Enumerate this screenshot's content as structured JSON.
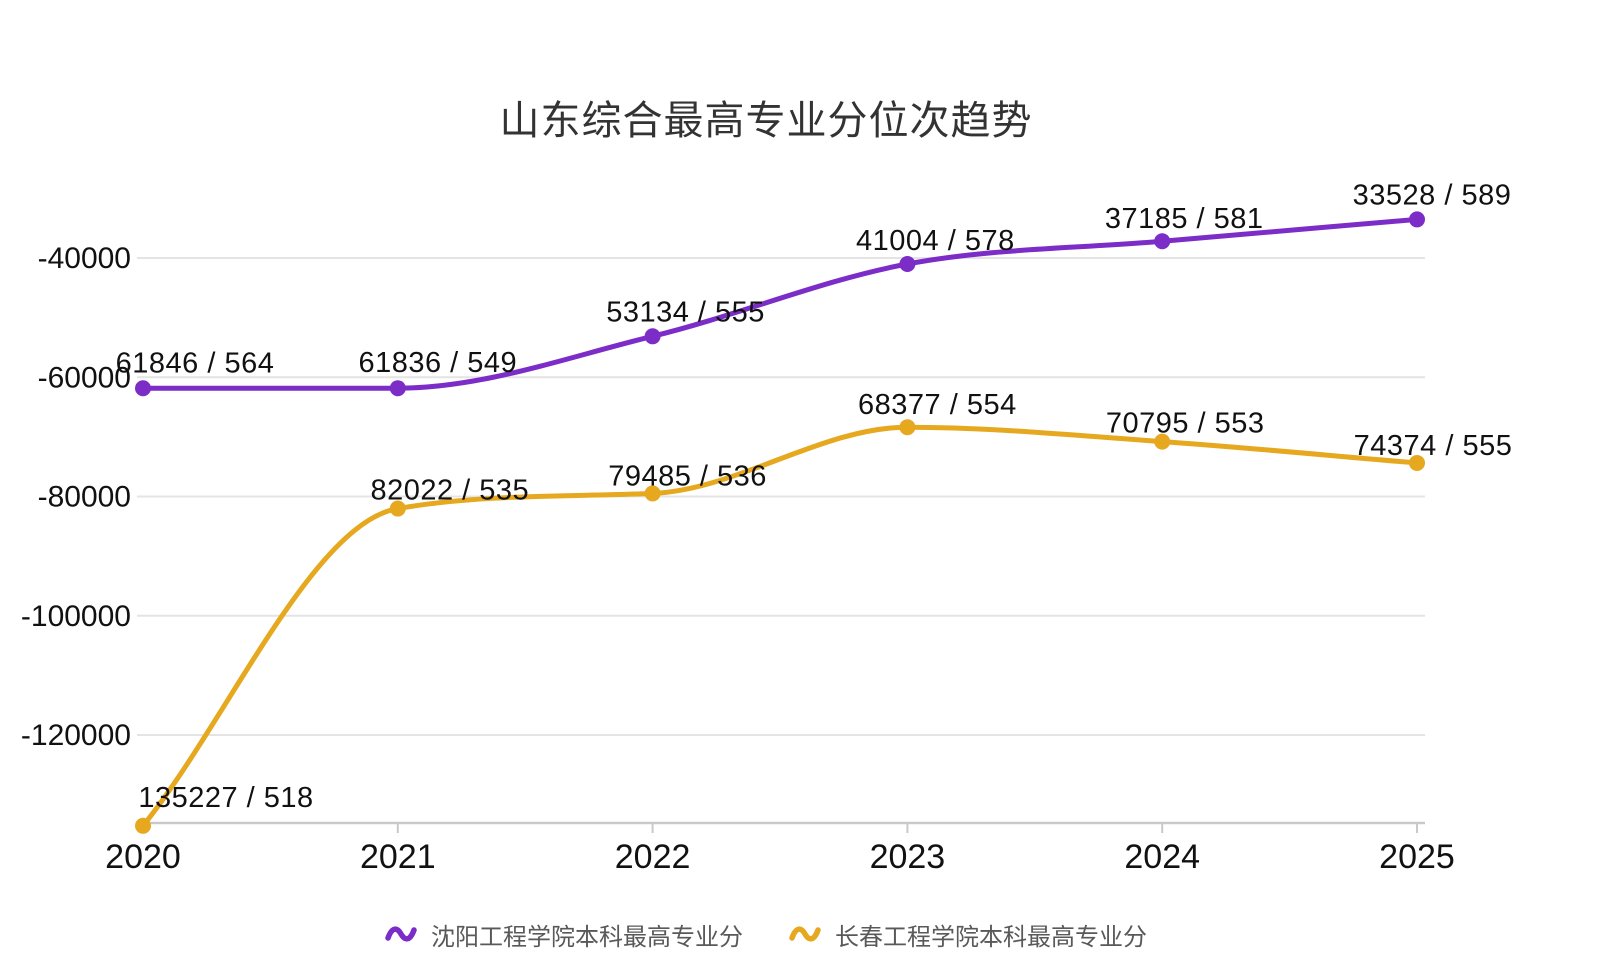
{
  "chart_data": {
    "type": "line",
    "title": "山东综合最高专业分位次趋势",
    "x_categories": [
      "2020",
      "2021",
      "2022",
      "2023",
      "2024",
      "2025"
    ],
    "y_ticks": [
      -40000,
      -60000,
      -80000,
      -100000,
      -120000
    ],
    "grid": "horizontal-only",
    "smooth": true,
    "legend_position": "bottom",
    "series": [
      {
        "name": "沈阳工程学院本科最高专业分",
        "color": "#7C2DC8",
        "ranks": [
          61846,
          61836,
          53134,
          41004,
          37185,
          33528
        ],
        "scores": [
          564,
          549,
          555,
          578,
          581,
          589
        ],
        "plotted_values": [
          -61846,
          -61836,
          -53134,
          -41004,
          -37185,
          -33528
        ],
        "labels": [
          "61846 / 564",
          "61836 / 549",
          "53134 / 555",
          "41004 / 578",
          "37185 / 581",
          "33528 / 589"
        ]
      },
      {
        "name": "长春工程学院本科最高专业分",
        "color": "#E6A81F",
        "ranks": [
          135227,
          82022,
          79485,
          68377,
          70795,
          74374
        ],
        "scores": [
          518,
          535,
          536,
          554,
          553,
          555
        ],
        "plotted_values": [
          -135227,
          -82022,
          -79485,
          -68377,
          -70795,
          -74374
        ],
        "labels": [
          "135227 / 518",
          "82022 / 535",
          "79485 / 536",
          "68377 / 554",
          "70795 / 553",
          "74374 / 555"
        ]
      }
    ]
  },
  "colors": {
    "gridline": "#E4E4E4",
    "axis_line": "#C9C9C9",
    "tick_mark": "#C9C9C9",
    "axis_text": "#111111",
    "data_label_text": "#111111",
    "title_text": "#333333",
    "legend_text": "#595959",
    "background": "#FFFFFF"
  }
}
